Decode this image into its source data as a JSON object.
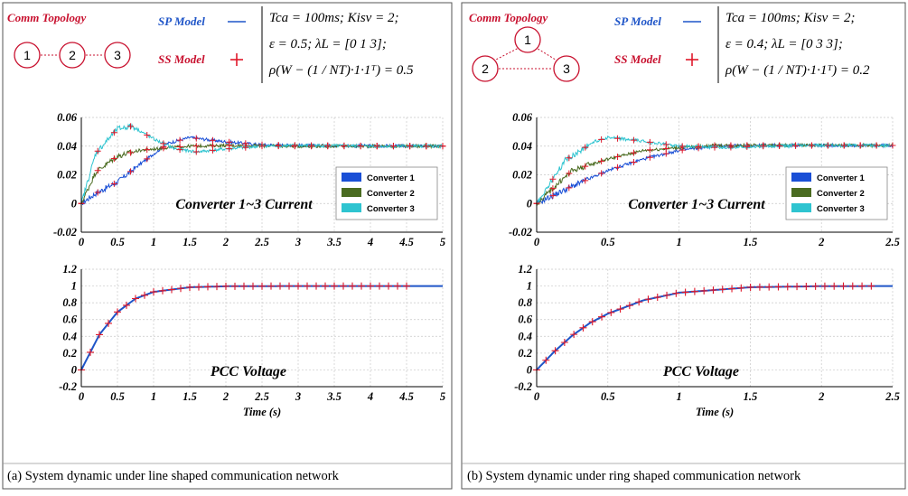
{
  "panels": [
    {
      "id": "a",
      "caption": "(a) System dynamic under line shaped communication network",
      "topology_title": "Comm Topology",
      "topology": {
        "shape": "line",
        "nodes": [
          "1",
          "2",
          "3"
        ]
      },
      "legend_sp": "SP Model",
      "legend_ss": "SS Model",
      "formula_lines": [
        "Tca = 100ms;   Kisv = 2;",
        "ε = 0.5;   λL = [0   1   3];",
        "ρ(W − (1 / NT)·1·1ᵀ) = 0.5"
      ]
    },
    {
      "id": "b",
      "caption": "(b) System dynamic under ring shaped communication network",
      "topology_title": "Comm Topology",
      "topology": {
        "shape": "ring",
        "nodes": [
          "1",
          "2",
          "3"
        ]
      },
      "legend_sp": "SP Model",
      "legend_ss": "SS Model",
      "formula_lines": [
        "Tca = 100ms;   Kisv = 2;",
        "ε = 0.4;   λL = [0   3   3];",
        "ρ(W − (1 / NT)·1·1ᵀ) = 0.2"
      ]
    }
  ],
  "colors": {
    "converter1": "#1a4fd6",
    "converter2": "#4a6b20",
    "converter3": "#2ec4d0",
    "sp_model": "#1f55c8",
    "ss_model": "#e0182a",
    "topology": "#c8102e"
  },
  "chart_data": [
    {
      "type": "line",
      "title": "Converter 1~3 Current",
      "xlim": [
        0,
        5
      ],
      "ylim": [
        -0.02,
        0.06
      ],
      "xticks": [
        "0",
        "0.5",
        "1",
        "1.5",
        "2",
        "2.5",
        "3",
        "3.5",
        "4",
        "4.5",
        "5"
      ],
      "yticks": [
        "-0.02",
        "0",
        "0.02",
        "0.04",
        "0.06"
      ],
      "legend": [
        "Converter 1",
        "Converter 2",
        "Converter 3"
      ],
      "legend_position": "lower-right",
      "grid": true,
      "series": [
        {
          "name": "Converter 1",
          "x": [
            0,
            0.2,
            0.5,
            0.8,
            1.2,
            1.5,
            2,
            2.5,
            3,
            4,
            5
          ],
          "y": [
            0,
            0.007,
            0.015,
            0.027,
            0.042,
            0.046,
            0.043,
            0.041,
            0.0405,
            0.0402,
            0.04
          ]
        },
        {
          "name": "Converter 2",
          "x": [
            0,
            0.2,
            0.5,
            0.8,
            1.2,
            1.5,
            2,
            2.5,
            3,
            4,
            5
          ],
          "y": [
            0,
            0.022,
            0.033,
            0.037,
            0.039,
            0.04,
            0.0405,
            0.0402,
            0.04,
            0.04,
            0.04
          ]
        },
        {
          "name": "Converter 3",
          "x": [
            0,
            0.2,
            0.5,
            0.7,
            1.0,
            1.3,
            1.6,
            2,
            2.5,
            3,
            4,
            5
          ],
          "y": [
            0,
            0.035,
            0.052,
            0.054,
            0.045,
            0.038,
            0.036,
            0.038,
            0.04,
            0.0405,
            0.04,
            0.04
          ]
        }
      ]
    },
    {
      "type": "line",
      "title": "PCC Voltage",
      "xlabel": "Time (s)",
      "xlim": [
        0,
        5
      ],
      "ylim": [
        -0.2,
        1.2
      ],
      "xticks": [
        "0",
        "0.5",
        "1",
        "1.5",
        "2",
        "2.5",
        "3",
        "3.5",
        "4",
        "4.5",
        "5"
      ],
      "yticks": [
        "-0.2",
        "0",
        "0.2",
        "0.4",
        "0.6",
        "0.8",
        "1",
        "1.2"
      ],
      "grid": true,
      "series": [
        {
          "name": "SP Model",
          "x": [
            0,
            0.25,
            0.5,
            0.75,
            1,
            1.5,
            2,
            3,
            4,
            5
          ],
          "y": [
            0,
            0.42,
            0.69,
            0.85,
            0.93,
            0.985,
            0.997,
            1,
            1,
            1
          ]
        },
        {
          "name": "SS Model",
          "x": [
            0,
            0.25,
            0.5,
            0.75,
            1,
            1.5,
            2,
            3,
            4,
            4.5
          ],
          "y": [
            0,
            0.42,
            0.69,
            0.85,
            0.93,
            0.985,
            0.997,
            1,
            1,
            1
          ]
        }
      ]
    },
    {
      "type": "line",
      "title": "Converter 1~3 Current",
      "xlim": [
        0,
        2.5
      ],
      "ylim": [
        -0.02,
        0.06
      ],
      "xticks": [
        "0",
        "0.5",
        "1",
        "1.5",
        "2",
        "2.5"
      ],
      "yticks": [
        "-0.02",
        "0",
        "0.02",
        "0.04",
        "0.06"
      ],
      "legend": [
        "Converter 1",
        "Converter 2",
        "Converter 3"
      ],
      "legend_position": "lower-right",
      "grid": true,
      "series": [
        {
          "name": "Converter 1",
          "x": [
            0,
            0.25,
            0.5,
            0.75,
            1,
            1.25,
            1.5,
            2,
            2.5
          ],
          "y": [
            0,
            0.012,
            0.023,
            0.031,
            0.037,
            0.04,
            0.0405,
            0.0405,
            0.0405
          ]
        },
        {
          "name": "Converter 2",
          "x": [
            0,
            0.25,
            0.5,
            0.75,
            1,
            1.25,
            1.5,
            2,
            2.5
          ],
          "y": [
            0,
            0.023,
            0.031,
            0.037,
            0.039,
            0.0405,
            0.0405,
            0.0405,
            0.0405
          ]
        },
        {
          "name": "Converter 3",
          "x": [
            0,
            0.2,
            0.4,
            0.5,
            0.7,
            1.0,
            1.3,
            1.6,
            2,
            2.5
          ],
          "y": [
            0,
            0.03,
            0.043,
            0.046,
            0.044,
            0.04,
            0.039,
            0.04,
            0.0405,
            0.0405
          ]
        }
      ]
    },
    {
      "type": "line",
      "title": "PCC Voltage",
      "xlabel": "Time (s)",
      "xlim": [
        0,
        2.5
      ],
      "ylim": [
        -0.2,
        1.2
      ],
      "xticks": [
        "0",
        "0.5",
        "1",
        "1.5",
        "2",
        "2.5"
      ],
      "yticks": [
        "-0.2",
        "0",
        "0.2",
        "0.4",
        "0.6",
        "0.8",
        "1",
        "1.2"
      ],
      "grid": true,
      "series": [
        {
          "name": "SP Model",
          "x": [
            0,
            0.125,
            0.25,
            0.375,
            0.5,
            0.75,
            1,
            1.5,
            2,
            2.5
          ],
          "y": [
            0,
            0.22,
            0.41,
            0.56,
            0.67,
            0.83,
            0.92,
            0.985,
            0.998,
            1
          ]
        },
        {
          "name": "SS Model",
          "x": [
            0,
            0.125,
            0.25,
            0.375,
            0.5,
            0.75,
            1,
            1.5,
            2,
            2.35
          ],
          "y": [
            0,
            0.22,
            0.41,
            0.56,
            0.67,
            0.83,
            0.92,
            0.985,
            0.998,
            1
          ]
        }
      ]
    }
  ]
}
